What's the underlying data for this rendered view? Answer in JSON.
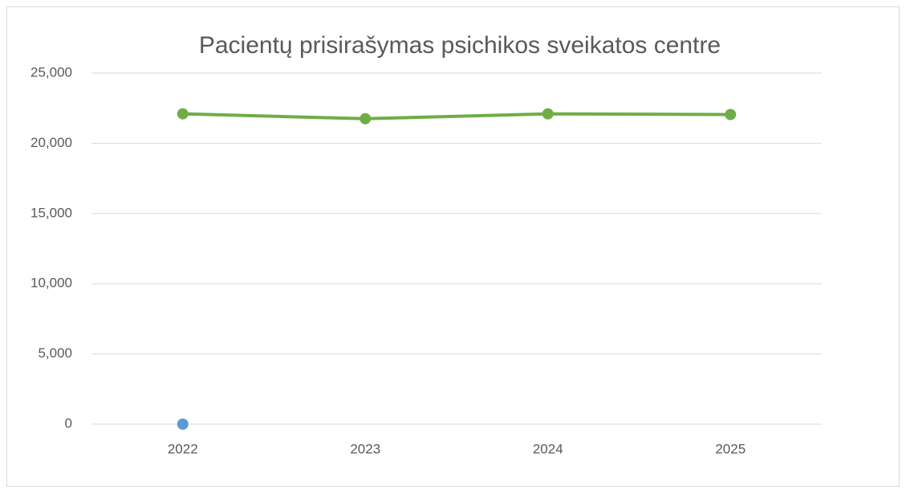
{
  "chart_data": {
    "type": "line",
    "title": "Pacientų prisirašymas psichikos sveikatos centre",
    "categories": [
      "2022",
      "2023",
      "2024",
      "2025"
    ],
    "series": [
      {
        "color": "#70ad47",
        "values": [
          22100,
          21750,
          22100,
          22050
        ]
      },
      {
        "color": "#5b9bd5",
        "values": [
          0,
          null,
          null,
          null
        ]
      }
    ],
    "ylim": [
      0,
      25000
    ],
    "yticks": [
      0,
      {
        "value": 5000,
        "label": "5,000"
      },
      {
        "value": 10000,
        "label": "10,000"
      },
      {
        "value": 15000,
        "label": "15,000"
      },
      {
        "value": 20000,
        "label": "20,000"
      },
      {
        "value": 25000,
        "label": "25,000"
      }
    ],
    "grid": true
  }
}
